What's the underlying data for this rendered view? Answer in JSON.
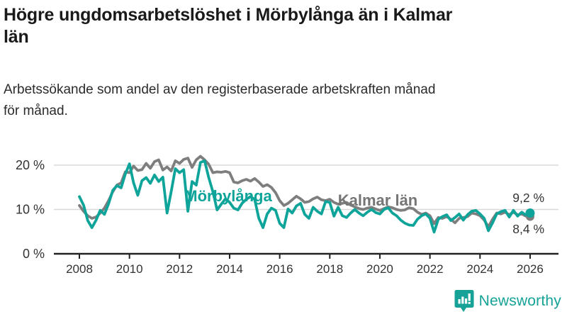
{
  "header": {
    "title_line1": "Högre ungdomsarbetslöshet i Mörbylånga än i Kalmar",
    "title_line2": "län",
    "subtitle_line1": "Arbetssökande som andel av den registerbaserade arbetskraften månad",
    "subtitle_line2": "för månad."
  },
  "branding": {
    "name": "Newsworthy"
  },
  "chart_data": {
    "type": "line",
    "title": "Högre ungdomsarbetslöshet i Mörbylånga än i Kalmar län",
    "subtitle": "Arbetssökande som andel av den registerbaserade arbetskraften månad för månad.",
    "unit": "%",
    "grid": "horizontal",
    "legend_position": "inline-labels",
    "x_start_year": 2008.0,
    "x_step_years": 0.16667,
    "x_end_year": 2026.0,
    "x_ticks": [
      2008,
      2010,
      2012,
      2014,
      2016,
      2018,
      2020,
      2022,
      2024,
      2026
    ],
    "ylim": [
      0,
      24
    ],
    "y_ticks": [
      {
        "value": 0,
        "label": "0 %"
      },
      {
        "value": 10,
        "label": "10 %"
      },
      {
        "value": 20,
        "label": "20 %"
      }
    ],
    "series": [
      {
        "name": "Mörbylånga",
        "color": "#0fa49a",
        "end_label": "9,2 %",
        "end_value": 9.2,
        "values": [
          12.9,
          11.0,
          7.5,
          5.9,
          7.6,
          9.8,
          8.9,
          11.3,
          14.3,
          15.4,
          14.9,
          18.0,
          20.3,
          16.0,
          13.2,
          16.5,
          17.2,
          15.9,
          17.8,
          16.3,
          17.3,
          9.2,
          14.0,
          19.2,
          18.3,
          19.0,
          9.6,
          16.3,
          15.5,
          20.6,
          21.0,
          17.2,
          14.0,
          9.9,
          11.2,
          12.4,
          11.6,
          10.3,
          9.9,
          11.4,
          12.3,
          12.9,
          12.3,
          8.0,
          5.9,
          9.0,
          10.3,
          9.8,
          6.9,
          5.9,
          10.1,
          9.2,
          10.8,
          11.4,
          8.9,
          8.0,
          10.5,
          9.6,
          9.0,
          11.8,
          11.6,
          8.5,
          10.5,
          8.6,
          8.2,
          9.2,
          10.0,
          9.2,
          8.6,
          9.4,
          10.0,
          9.3,
          9.0,
          10.0,
          10.4,
          9.2,
          8.6,
          7.6,
          6.9,
          6.5,
          6.4,
          7.8,
          8.6,
          9.0,
          8.0,
          4.9,
          7.8,
          8.4,
          8.8,
          7.5,
          8.2,
          9.0,
          7.6,
          8.8,
          9.6,
          9.8,
          9.0,
          8.0,
          5.2,
          7.0,
          9.0,
          9.5,
          9.8,
          8.3,
          9.8,
          8.5,
          9.4,
          8.7,
          9.2
        ]
      },
      {
        "name": "Kalmar län",
        "color": "#7e7e7e",
        "end_label": "8,4 %",
        "end_value": 8.4,
        "values": [
          10.9,
          9.6,
          8.6,
          8.0,
          8.3,
          9.2,
          10.3,
          12.0,
          14.0,
          15.5,
          16.0,
          18.5,
          18.3,
          19.8,
          18.8,
          19.0,
          20.4,
          19.3,
          20.8,
          21.2,
          18.9,
          19.6,
          18.7,
          21.0,
          20.4,
          21.3,
          21.6,
          19.5,
          21.2,
          22.0,
          21.2,
          20.2,
          18.3,
          18.5,
          18.4,
          18.6,
          18.3,
          16.2,
          16.0,
          16.5,
          16.8,
          16.4,
          17.0,
          16.2,
          15.2,
          15.6,
          15.0,
          13.8,
          12.0,
          10.9,
          11.4,
          12.2,
          13.0,
          12.4,
          11.6,
          11.8,
          12.4,
          12.8,
          12.2,
          12.0,
          12.3,
          11.6,
          11.2,
          11.4,
          11.6,
          11.0,
          10.6,
          10.2,
          10.0,
          10.3,
          10.5,
          10.1,
          9.8,
          10.2,
          10.6,
          10.4,
          10.0,
          9.8,
          9.9,
          10.4,
          10.2,
          9.4,
          8.9,
          9.2,
          8.6,
          6.8,
          8.2,
          8.0,
          8.4,
          7.8,
          7.0,
          8.0,
          8.2,
          8.4,
          9.2,
          9.0,
          8.6,
          7.6,
          6.1,
          7.8,
          9.2,
          9.0,
          9.4,
          8.8,
          9.4,
          8.8,
          9.0,
          8.5,
          8.4
        ]
      }
    ]
  }
}
